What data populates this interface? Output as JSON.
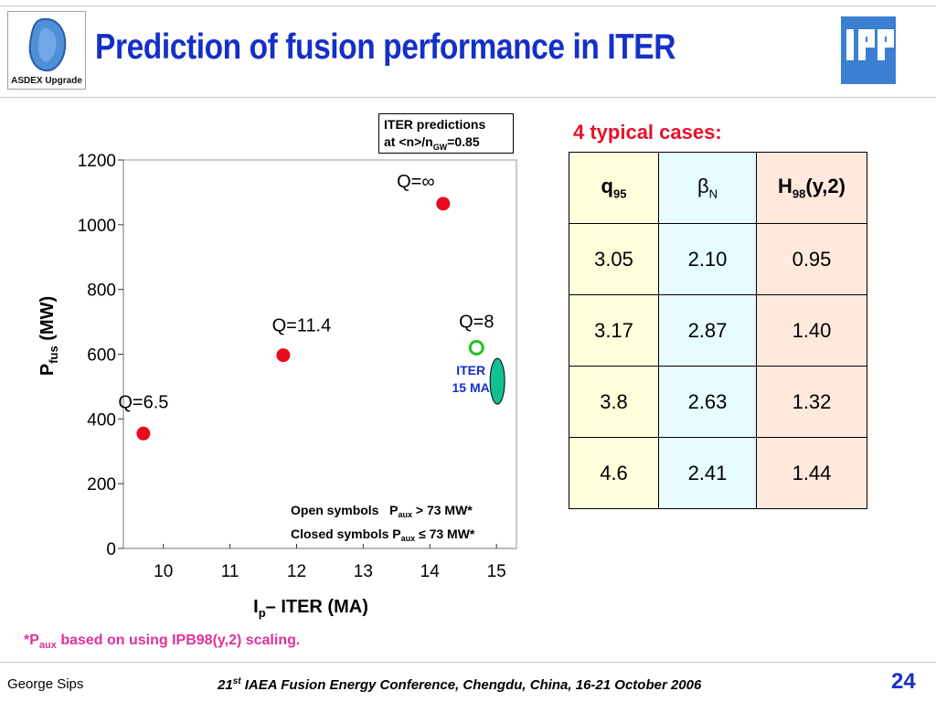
{
  "header": {
    "logo_text": "ASDEX Upgrade",
    "title": "Prediction of fusion performance in ITER",
    "ipp_logo_text": "IPP"
  },
  "prediction_box": {
    "line1": "ITER predictions",
    "line2_pre": "at <n>/n",
    "line2_sub": "GW",
    "line2_post": "=0.85"
  },
  "chart_data": {
    "type": "scatter",
    "xlabel_main": "I",
    "xlabel_sub": "p",
    "xlabel_rest": "– ITER (MA)",
    "ylabel_main": "P",
    "ylabel_sub": "fus",
    "ylabel_rest": " (MW)",
    "xlim": [
      9.4,
      15.3
    ],
    "ylim": [
      0,
      1200
    ],
    "xticks": [
      10,
      11,
      12,
      13,
      14,
      15
    ],
    "yticks": [
      0,
      200,
      400,
      600,
      800,
      1000,
      1200
    ],
    "points": [
      {
        "x": 9.7,
        "y": 355,
        "label": "Q=6.5",
        "filled": true
      },
      {
        "x": 11.8,
        "y": 597,
        "label": "Q=11.4",
        "filled": true
      },
      {
        "x": 14.2,
        "y": 1065,
        "label": "Q=∞",
        "filled": true
      },
      {
        "x": 14.7,
        "y": 620,
        "label": "Q=8",
        "filled": false
      }
    ],
    "iter_marker": {
      "x": 15.0,
      "y": 460,
      "label_line1": "ITER",
      "label_line2": "15 MA"
    },
    "legend_line1": "Open symbols   P",
    "legend_line1_sub": "aux",
    "legend_line1_rest": " > 73 MW*",
    "legend_line2": "Closed symbols P",
    "legend_line2_sub": "aux",
    "legend_line2_rest": " ≤ 73 MW*",
    "colors": {
      "filled": "#e80a1e",
      "open": "#22c322",
      "iter": "#10c090",
      "iter_text": "#1430c8"
    }
  },
  "cases": {
    "heading": "4 typical cases:",
    "headers": [
      {
        "main": "q",
        "sub": "95"
      },
      {
        "main": "β",
        "sub": "N"
      },
      {
        "main": "H",
        "sub": "98",
        "rest": "(y,2)"
      }
    ],
    "rows": [
      [
        "3.05",
        "2.10",
        "0.95"
      ],
      [
        "3.17",
        "2.87",
        "1.40"
      ],
      [
        "3.8",
        "2.63",
        "1.32"
      ],
      [
        "4.6",
        "2.41",
        "1.44"
      ]
    ]
  },
  "note": {
    "pre": "*P",
    "sub": "aux",
    "post": " based on using IPB98(y,2) scaling."
  },
  "footer": {
    "author": "George Sips",
    "conf_num": "21",
    "conf_sup": "st",
    "conf_rest": " IAEA Fusion Energy Conference, Chengdu, China, 16-21 October 2006",
    "page": "24"
  }
}
